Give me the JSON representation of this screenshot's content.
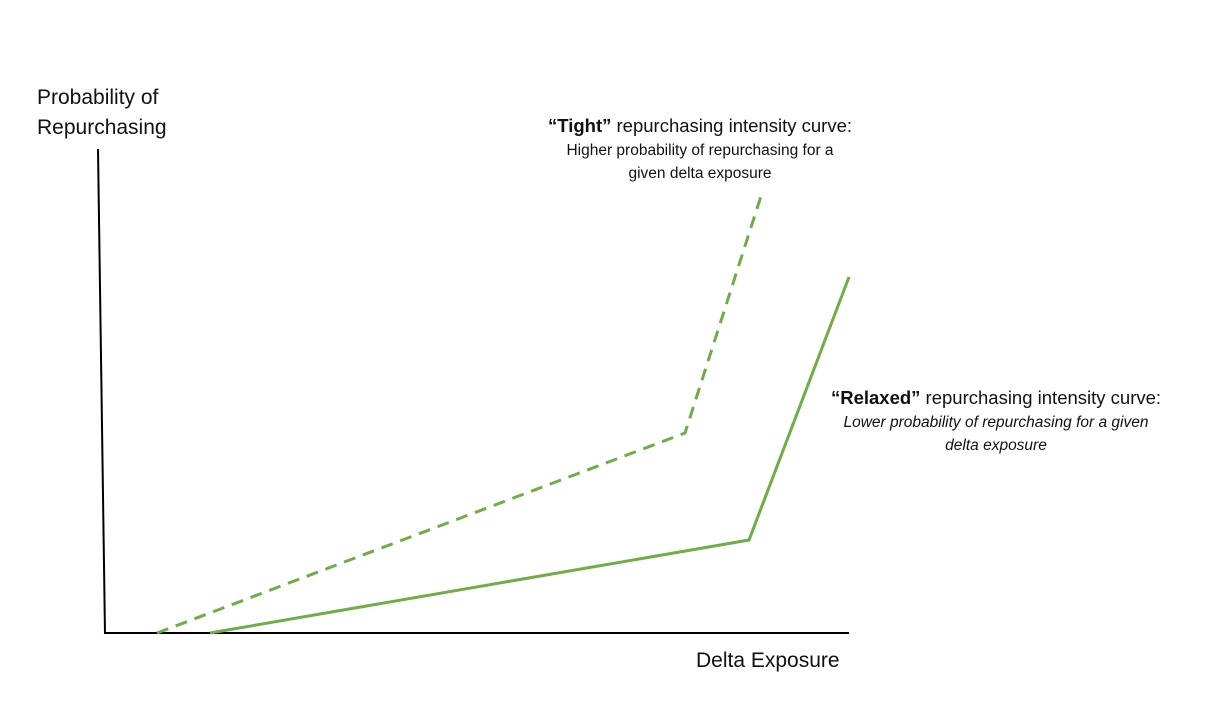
{
  "diagram": {
    "y_axis_label_line1": "Probability of",
    "y_axis_label_line2": "Repurchasing",
    "x_axis_label": "Delta Exposure",
    "line_color": "#70ad47",
    "axis_color": "#000000",
    "curves": [
      {
        "id": "tight",
        "line_style": "dashed",
        "title_bold": "“Tight”",
        "title_rest": " repurchasing intensity curve:",
        "desc_line1": "Higher probability of repurchasing for a",
        "desc_line2": "given delta exposure",
        "desc_style": "normal"
      },
      {
        "id": "relaxed",
        "line_style": "solid",
        "title_bold": "“Relaxed”",
        "title_rest": " repurchasing intensity curve:",
        "desc_line1": "Lower probability of repurchasing for a given",
        "desc_line2": "delta exposure",
        "desc_style": "italic"
      }
    ]
  }
}
